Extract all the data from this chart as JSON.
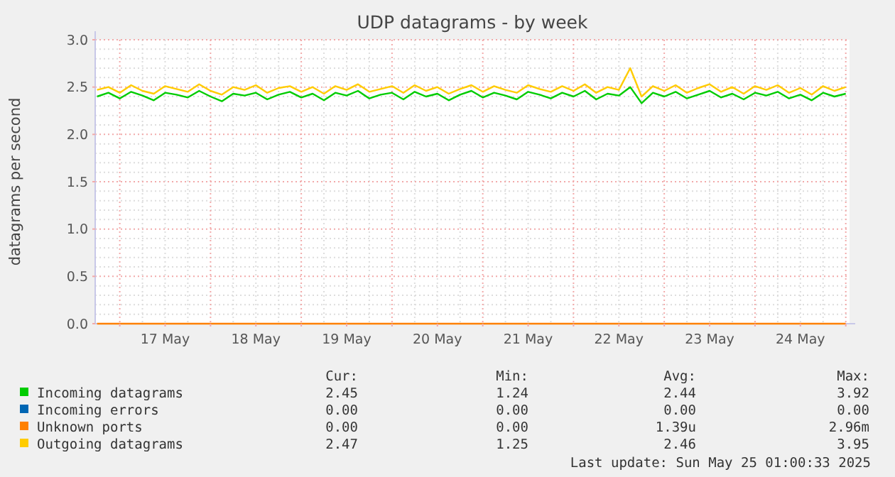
{
  "chart_data": {
    "type": "line",
    "title": "UDP datagrams - by week",
    "ylabel": "datagrams per second",
    "x": [
      "2025-05-16T18:00",
      "2025-05-16T21:00",
      "2025-05-17T00:00",
      "2025-05-17T03:00",
      "2025-05-17T06:00",
      "2025-05-17T09:00",
      "2025-05-17T12:00",
      "2025-05-17T15:00",
      "2025-05-17T18:00",
      "2025-05-17T21:00",
      "2025-05-18T00:00",
      "2025-05-18T03:00",
      "2025-05-18T06:00",
      "2025-05-18T09:00",
      "2025-05-18T12:00",
      "2025-05-18T15:00",
      "2025-05-18T18:00",
      "2025-05-18T21:00",
      "2025-05-19T00:00",
      "2025-05-19T03:00",
      "2025-05-19T06:00",
      "2025-05-19T09:00",
      "2025-05-19T12:00",
      "2025-05-19T15:00",
      "2025-05-19T18:00",
      "2025-05-19T21:00",
      "2025-05-20T00:00",
      "2025-05-20T03:00",
      "2025-05-20T06:00",
      "2025-05-20T09:00",
      "2025-05-20T12:00",
      "2025-05-20T15:00",
      "2025-05-20T18:00",
      "2025-05-20T21:00",
      "2025-05-21T00:00",
      "2025-05-21T03:00",
      "2025-05-21T06:00",
      "2025-05-21T09:00",
      "2025-05-21T12:00",
      "2025-05-21T15:00",
      "2025-05-21T18:00",
      "2025-05-21T21:00",
      "2025-05-22T00:00",
      "2025-05-22T03:00",
      "2025-05-22T06:00",
      "2025-05-22T09:00",
      "2025-05-22T12:00",
      "2025-05-22T15:00",
      "2025-05-22T18:00",
      "2025-05-22T21:00",
      "2025-05-23T00:00",
      "2025-05-23T03:00",
      "2025-05-23T06:00",
      "2025-05-23T09:00",
      "2025-05-23T12:00",
      "2025-05-23T15:00",
      "2025-05-23T18:00",
      "2025-05-23T21:00",
      "2025-05-24T00:00",
      "2025-05-24T03:00",
      "2025-05-24T06:00",
      "2025-05-24T09:00",
      "2025-05-24T12:00",
      "2025-05-24T15:00",
      "2025-05-24T18:00",
      "2025-05-24T21:00",
      "2025-05-25T00:00"
    ],
    "series": [
      {
        "name": "Incoming datagrams",
        "color": "#00cc00",
        "values": [
          2.4,
          2.44,
          2.38,
          2.45,
          2.41,
          2.36,
          2.44,
          2.42,
          2.39,
          2.46,
          2.4,
          2.35,
          2.43,
          2.41,
          2.44,
          2.37,
          2.42,
          2.45,
          2.39,
          2.43,
          2.36,
          2.44,
          2.41,
          2.46,
          2.38,
          2.42,
          2.44,
          2.37,
          2.45,
          2.4,
          2.43,
          2.36,
          2.42,
          2.46,
          2.39,
          2.44,
          2.41,
          2.37,
          2.45,
          2.42,
          2.38,
          2.44,
          2.4,
          2.46,
          2.37,
          2.43,
          2.41,
          2.5,
          2.33,
          2.44,
          2.4,
          2.45,
          2.38,
          2.42,
          2.46,
          2.39,
          2.43,
          2.37,
          2.44,
          2.41,
          2.45,
          2.38,
          2.42,
          2.36,
          2.44,
          2.4,
          2.43
        ]
      },
      {
        "name": "Incoming errors",
        "color": "#0066b3",
        "values": [
          null,
          null,
          null,
          null,
          null,
          null,
          null,
          null,
          null,
          null,
          null,
          null,
          null,
          null,
          null,
          null,
          null,
          null,
          null,
          null,
          null,
          null,
          null,
          null,
          null,
          null,
          null,
          null,
          null,
          null,
          null,
          null,
          null,
          null,
          null,
          null,
          null,
          null,
          null,
          null,
          null,
          null,
          null,
          null,
          null,
          null,
          null,
          null,
          null,
          null,
          null,
          null,
          null,
          null,
          null,
          null,
          null,
          null,
          null,
          null,
          null,
          null,
          null,
          null,
          null,
          null,
          null
        ]
      },
      {
        "name": "Unknown ports",
        "color": "#ff8000",
        "x": [
          "2025-05-16T18:00",
          "2025-05-25T00:00"
        ],
        "values": [
          0,
          0
        ]
      },
      {
        "name": "Outgoing datagrams",
        "color": "#ffcc00",
        "values": [
          2.47,
          2.5,
          2.44,
          2.52,
          2.46,
          2.43,
          2.51,
          2.48,
          2.45,
          2.53,
          2.46,
          2.42,
          2.5,
          2.47,
          2.52,
          2.44,
          2.49,
          2.51,
          2.45,
          2.5,
          2.43,
          2.51,
          2.47,
          2.53,
          2.45,
          2.48,
          2.51,
          2.44,
          2.52,
          2.46,
          2.5,
          2.43,
          2.48,
          2.52,
          2.45,
          2.51,
          2.47,
          2.44,
          2.52,
          2.48,
          2.45,
          2.51,
          2.46,
          2.53,
          2.44,
          2.5,
          2.47,
          2.7,
          2.4,
          2.51,
          2.46,
          2.52,
          2.44,
          2.49,
          2.53,
          2.45,
          2.5,
          2.43,
          2.51,
          2.47,
          2.52,
          2.44,
          2.49,
          2.42,
          2.51,
          2.46,
          2.5
        ]
      }
    ],
    "xlim": [
      "2025-05-16T17:30",
      "2025-05-25T01:00"
    ],
    "xticks": [
      {
        "value": "2025-05-17T00:00",
        "label": null
      },
      {
        "value": "2025-05-17T12:00",
        "label": "17 May"
      },
      {
        "value": "2025-05-18T00:00",
        "label": null
      },
      {
        "value": "2025-05-18T12:00",
        "label": "18 May"
      },
      {
        "value": "2025-05-19T00:00",
        "label": null
      },
      {
        "value": "2025-05-19T12:00",
        "label": "19 May"
      },
      {
        "value": "2025-05-20T00:00",
        "label": null
      },
      {
        "value": "2025-05-20T12:00",
        "label": "20 May"
      },
      {
        "value": "2025-05-21T00:00",
        "label": null
      },
      {
        "value": "2025-05-21T12:00",
        "label": "21 May"
      },
      {
        "value": "2025-05-22T00:00",
        "label": null
      },
      {
        "value": "2025-05-22T12:00",
        "label": "22 May"
      },
      {
        "value": "2025-05-23T00:00",
        "label": null
      },
      {
        "value": "2025-05-23T12:00",
        "label": "23 May"
      },
      {
        "value": "2025-05-24T00:00",
        "label": null
      },
      {
        "value": "2025-05-24T12:00",
        "label": "24 May"
      },
      {
        "value": "2025-05-25T00:00",
        "label": null
      }
    ],
    "ylim": [
      0,
      3
    ],
    "yticks": [
      {
        "value": 0,
        "label": "0.0"
      },
      {
        "value": 0.5,
        "label": "0.5"
      },
      {
        "value": 1,
        "label": "1.0"
      },
      {
        "value": 1.5,
        "label": "1.5"
      },
      {
        "value": 2,
        "label": "2.0"
      },
      {
        "value": 2.5,
        "label": "2.5"
      },
      {
        "value": 3,
        "label": "3.0"
      }
    ],
    "grid": true,
    "legend": "bottom",
    "annotations": [
      "Cur:",
      "Min:",
      "Avg:",
      "Max:",
      "2.45",
      "1.24",
      "2.44",
      "3.92",
      "0.00",
      "0.00",
      "0.00",
      "0.00",
      "0.00",
      "0.00",
      "1.39u",
      "2.96m",
      "2.47",
      "1.25",
      "2.46",
      "3.95",
      "Last update: Sun May 25 01:00:33 2025"
    ]
  }
}
